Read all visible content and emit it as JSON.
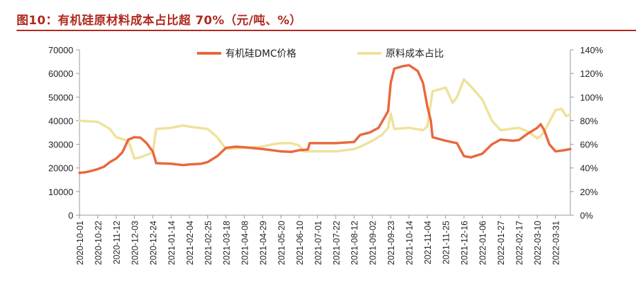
{
  "chart_data": {
    "type": "line",
    "title": "图10：有机硅原材料成本占比超 70%（元/吨、%）",
    "series": [
      {
        "name": "有机硅DMC价格",
        "axis": "left",
        "color": "#e8683f",
        "points": [
          [
            "2020-10-01",
            17900
          ],
          [
            "2020-10-08",
            18200
          ],
          [
            "2020-10-15",
            18800
          ],
          [
            "2020-10-22",
            19500
          ],
          [
            "2020-10-29",
            20500
          ],
          [
            "2020-11-05",
            22500
          ],
          [
            "2020-11-12",
            24000
          ],
          [
            "2020-11-19",
            26500
          ],
          [
            "2020-11-26",
            32000
          ],
          [
            "2020-12-03",
            33000
          ],
          [
            "2020-12-10",
            32800
          ],
          [
            "2020-12-17",
            30500
          ],
          [
            "2020-12-24",
            27000
          ],
          [
            "2020-12-28",
            22000
          ],
          [
            "2021-01-14",
            21800
          ],
          [
            "2021-01-28",
            21200
          ],
          [
            "2021-02-04",
            21500
          ],
          [
            "2021-02-18",
            21800
          ],
          [
            "2021-02-25",
            22500
          ],
          [
            "2021-03-08",
            25000
          ],
          [
            "2021-03-18",
            28500
          ],
          [
            "2021-03-29",
            29000
          ],
          [
            "2021-04-08",
            28800
          ],
          [
            "2021-04-29",
            28000
          ],
          [
            "2021-05-10",
            27500
          ],
          [
            "2021-05-20",
            27000
          ],
          [
            "2021-06-01",
            26800
          ],
          [
            "2021-06-10",
            27500
          ],
          [
            "2021-06-20",
            27800
          ],
          [
            "2021-06-22",
            30500
          ],
          [
            "2021-07-22",
            30500
          ],
          [
            "2021-08-12",
            31000
          ],
          [
            "2021-08-19",
            34000
          ],
          [
            "2021-08-30",
            35000
          ],
          [
            "2021-09-09",
            37000
          ],
          [
            "2021-09-20",
            44000
          ],
          [
            "2021-09-23",
            56000
          ],
          [
            "2021-09-27",
            62000
          ],
          [
            "2021-10-06",
            63000
          ],
          [
            "2021-10-14",
            63500
          ],
          [
            "2021-10-24",
            61000
          ],
          [
            "2021-10-30",
            56000
          ],
          [
            "2021-11-04",
            46000
          ],
          [
            "2021-11-08",
            40000
          ],
          [
            "2021-11-10",
            33000
          ],
          [
            "2021-11-25",
            31500
          ],
          [
            "2021-12-08",
            30500
          ],
          [
            "2021-12-16",
            25000
          ],
          [
            "2021-12-24",
            24500
          ],
          [
            "2022-01-06",
            26000
          ],
          [
            "2022-01-17",
            30000
          ],
          [
            "2022-01-27",
            32000
          ],
          [
            "2022-02-10",
            31500
          ],
          [
            "2022-02-17",
            31800
          ],
          [
            "2022-02-27",
            34500
          ],
          [
            "2022-03-10",
            37000
          ],
          [
            "2022-03-14",
            38500
          ],
          [
            "2022-03-18",
            36000
          ],
          [
            "2022-03-24",
            30000
          ],
          [
            "2022-03-31",
            27000
          ],
          [
            "2022-04-10",
            27500
          ],
          [
            "2022-04-17",
            28000
          ]
        ]
      },
      {
        "name": "原料成本占比",
        "axis": "right",
        "color": "#efe29a",
        "points": [
          [
            "2020-10-01",
            80
          ],
          [
            "2020-10-22",
            79
          ],
          [
            "2020-11-05",
            73
          ],
          [
            "2020-11-12",
            66
          ],
          [
            "2020-11-26",
            63
          ],
          [
            "2020-12-03",
            48
          ],
          [
            "2020-12-10",
            49
          ],
          [
            "2020-12-24",
            53
          ],
          [
            "2020-12-28",
            73
          ],
          [
            "2021-01-14",
            74
          ],
          [
            "2021-01-28",
            76
          ],
          [
            "2021-02-04",
            75
          ],
          [
            "2021-02-25",
            73
          ],
          [
            "2021-03-08",
            66
          ],
          [
            "2021-03-18",
            56
          ],
          [
            "2021-04-08",
            57
          ],
          [
            "2021-04-29",
            58
          ],
          [
            "2021-05-10",
            60
          ],
          [
            "2021-05-20",
            61
          ],
          [
            "2021-06-01",
            61
          ],
          [
            "2021-06-10",
            59
          ],
          [
            "2021-06-15",
            54
          ],
          [
            "2021-07-22",
            54
          ],
          [
            "2021-08-12",
            56
          ],
          [
            "2021-08-19",
            58
          ],
          [
            "2021-09-02",
            63
          ],
          [
            "2021-09-13",
            68
          ],
          [
            "2021-09-20",
            74
          ],
          [
            "2021-09-23",
            86
          ],
          [
            "2021-09-27",
            73
          ],
          [
            "2021-10-14",
            74
          ],
          [
            "2021-10-30",
            72
          ],
          [
            "2021-11-04",
            75
          ],
          [
            "2021-11-10",
            105
          ],
          [
            "2021-11-25",
            108
          ],
          [
            "2021-12-03",
            95
          ],
          [
            "2021-12-08",
            100
          ],
          [
            "2021-12-16",
            115
          ],
          [
            "2021-12-24",
            109
          ],
          [
            "2022-01-06",
            98
          ],
          [
            "2022-01-17",
            80
          ],
          [
            "2022-01-27",
            72
          ],
          [
            "2022-02-17",
            74
          ],
          [
            "2022-02-27",
            71
          ],
          [
            "2022-03-10",
            65
          ],
          [
            "2022-03-14",
            67
          ],
          [
            "2022-03-18",
            71
          ],
          [
            "2022-03-24",
            79
          ],
          [
            "2022-03-31",
            89
          ],
          [
            "2022-04-07",
            90
          ],
          [
            "2022-04-12",
            84
          ],
          [
            "2022-04-17",
            85
          ]
        ]
      }
    ],
    "x_ticks": [
      "2020-10-01",
      "2020-10-22",
      "2020-11-12",
      "2020-12-03",
      "2020-12-24",
      "2021-01-14",
      "2021-02-04",
      "2021-02-25",
      "2021-03-18",
      "2021-04-08",
      "2021-04-29",
      "2021-05-20",
      "2021-06-10",
      "2021-07-01",
      "2021-07-22",
      "2021-08-12",
      "2021-09-02",
      "2021-09-23",
      "2021-10-14",
      "2021-11-04",
      "2021-11-25",
      "2021-12-16",
      "2022-01-06",
      "2022-01-27",
      "2022-02-17",
      "2022-03-10",
      "2022-03-31"
    ],
    "x_range": [
      "2020-10-01",
      "2022-04-17"
    ],
    "y_left": {
      "min": 0,
      "max": 70000,
      "ticks": [
        "0",
        "10000",
        "20000",
        "30000",
        "40000",
        "50000",
        "60000",
        "70000"
      ]
    },
    "y_right": {
      "min": 0,
      "max": 140,
      "ticks": [
        "0%",
        "20%",
        "40%",
        "60%",
        "80%",
        "100%",
        "120%",
        "140%"
      ]
    },
    "legend": "top-center",
    "grid": false
  }
}
